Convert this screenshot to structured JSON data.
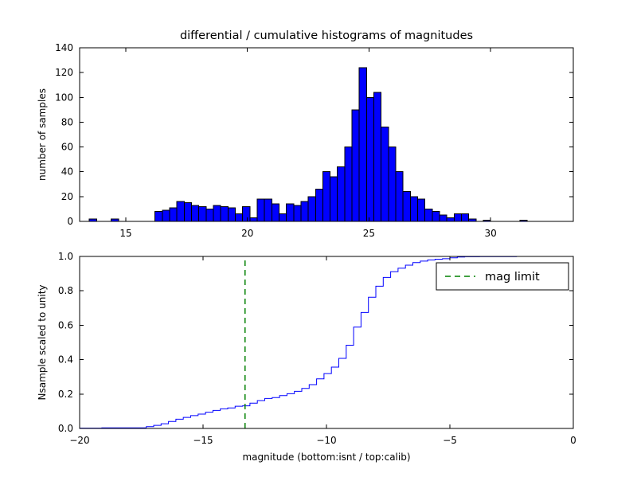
{
  "figure": {
    "background": "#ffffff",
    "title": "differential / cumulative histograms of magnitudes"
  },
  "chart_data": [
    {
      "type": "bar",
      "subtype": "histogram-differential",
      "title": "differential / cumulative histograms of magnitudes",
      "ylabel": "number of samples",
      "bar_color": "#0000ff",
      "bar_edge_color": "#000000",
      "bin_start": 13.5,
      "bin_width": 0.3,
      "counts": [
        2,
        0,
        0,
        2,
        0,
        0,
        0,
        0,
        0,
        8,
        9,
        11,
        16,
        15,
        13,
        12,
        10,
        13,
        12,
        11,
        6,
        12,
        3,
        18,
        18,
        14,
        6,
        14,
        13,
        16,
        20,
        26,
        40,
        36,
        44,
        60,
        90,
        124,
        100,
        104,
        76,
        60,
        40,
        24,
        20,
        18,
        10,
        8,
        5,
        3,
        6,
        6,
        2,
        0,
        1,
        0,
        0,
        0,
        0,
        1
      ],
      "xlim": [
        13.1,
        33.4
      ],
      "ylim": [
        0,
        140
      ],
      "xticks": [
        15,
        20,
        25,
        30
      ],
      "xticklabels": [
        "15",
        "20",
        "25",
        "30"
      ],
      "yticks": [
        0,
        20,
        40,
        60,
        80,
        100,
        120,
        140
      ],
      "yticklabels": [
        "0",
        "20",
        "40",
        "60",
        "80",
        "100",
        "120",
        "140"
      ],
      "grid": false
    },
    {
      "type": "line",
      "subtype": "histogram-cumulative-step",
      "ylabel": "Nsample scaled to unity",
      "xlabel": "magnitude (bottom:isnt / top:calib)",
      "line_color": "#0000ff",
      "x_offset_from_top_bins": -33.5,
      "xlim": [
        -20,
        0
      ],
      "ylim": [
        0,
        1
      ],
      "xticks": [
        -20,
        -15,
        -10,
        -5,
        0
      ],
      "xticklabels": [
        "−20",
        "−15",
        "−10",
        "−5",
        "0"
      ],
      "yticks": [
        0,
        0.2,
        0.4,
        0.6,
        0.8,
        1.0
      ],
      "yticklabels": [
        "0.0",
        "0.2",
        "0.4",
        "0.6",
        "0.8",
        "1.0"
      ],
      "mag_limit": {
        "x": -13.3,
        "color": "#008000",
        "style": "dashed"
      },
      "legend": [
        {
          "label": "mag limit",
          "color": "#008000",
          "dash": true
        }
      ],
      "legend_position": "upper right",
      "grid": false
    }
  ]
}
